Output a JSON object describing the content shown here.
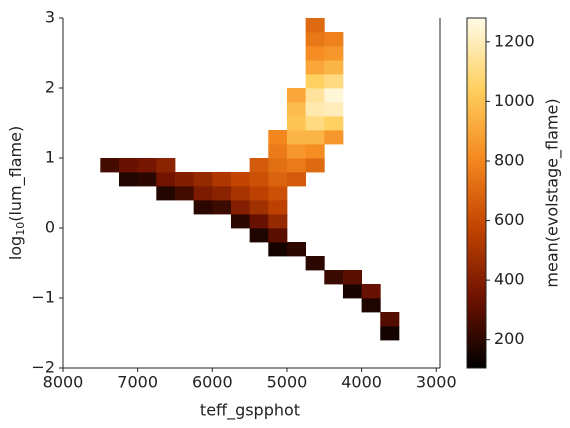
{
  "chart_data": {
    "type": "heatmap2d",
    "xlabel": "teff_gspphot",
    "ylabel": [
      "log",
      "10",
      "(lum_flame)"
    ],
    "xlim": [
      8000,
      2950
    ],
    "ylim": [
      -2,
      3
    ],
    "xticks": [
      8000,
      7000,
      6000,
      5000,
      4000,
      3000
    ],
    "yticks": [
      {
        "value": -2,
        "label": "−2"
      },
      {
        "value": -1,
        "label": "−1"
      },
      0,
      1,
      2,
      3
    ],
    "x_bins": [
      7500,
      7250,
      7000,
      6750,
      6500,
      6250,
      6000,
      5750,
      5500,
      5250,
      5000,
      4750,
      4500,
      4250,
      4000,
      3750,
      3500
    ],
    "y_bins": [
      -1.6,
      -1.4,
      -1.2,
      -1.0,
      -0.8,
      -0.6,
      -0.4,
      -0.2,
      0.0,
      0.2,
      0.4,
      0.6,
      0.8,
      1.0,
      1.2,
      1.4,
      1.6,
      1.8,
      2.0,
      2.2,
      2.4,
      2.6,
      2.8,
      3.0
    ],
    "values": [
      [
        null,
        null,
        null,
        null,
        null,
        null,
        null,
        null,
        null,
        null,
        null,
        null,
        null,
        null,
        null,
        150
      ],
      [
        null,
        null,
        null,
        null,
        null,
        null,
        null,
        null,
        null,
        null,
        null,
        null,
        null,
        null,
        null,
        280
      ],
      [
        null,
        null,
        null,
        null,
        null,
        null,
        null,
        null,
        null,
        null,
        null,
        null,
        null,
        null,
        170,
        null
      ],
      [
        null,
        null,
        null,
        null,
        null,
        null,
        null,
        null,
        null,
        null,
        null,
        null,
        null,
        160,
        330,
        null
      ],
      [
        null,
        null,
        null,
        null,
        null,
        null,
        null,
        null,
        null,
        null,
        null,
        null,
        230,
        300,
        null,
        null
      ],
      [
        null,
        null,
        null,
        null,
        null,
        null,
        null,
        null,
        null,
        null,
        null,
        200,
        null,
        null,
        null,
        null
      ],
      [
        null,
        null,
        null,
        null,
        null,
        null,
        null,
        null,
        null,
        150,
        200,
        null,
        null,
        null,
        null,
        null
      ],
      [
        null,
        null,
        null,
        null,
        null,
        null,
        null,
        null,
        170,
        300,
        null,
        null,
        null,
        null,
        null,
        null
      ],
      [
        null,
        null,
        null,
        null,
        null,
        null,
        null,
        200,
        330,
        450,
        null,
        null,
        null,
        null,
        null,
        null
      ],
      [
        null,
        null,
        null,
        null,
        null,
        200,
        230,
        400,
        480,
        560,
        null,
        null,
        null,
        null,
        null,
        null
      ],
      [
        null,
        null,
        null,
        180,
        250,
        380,
        420,
        500,
        560,
        620,
        null,
        null,
        null,
        null,
        null,
        null
      ],
      [
        null,
        180,
        200,
        350,
        400,
        450,
        520,
        580,
        620,
        680,
        650,
        null,
        null,
        null,
        null,
        null
      ],
      [
        250,
        330,
        360,
        420,
        null,
        null,
        null,
        null,
        650,
        720,
        760,
        700,
        null,
        null,
        null,
        null
      ],
      [
        null,
        null,
        null,
        null,
        null,
        null,
        null,
        null,
        null,
        760,
        850,
        820,
        null,
        null,
        null,
        null
      ],
      [
        null,
        null,
        null,
        null,
        null,
        null,
        null,
        null,
        null,
        800,
        950,
        950,
        850,
        null,
        null,
        null
      ],
      [
        null,
        null,
        null,
        null,
        null,
        null,
        null,
        null,
        null,
        null,
        1000,
        1100,
        1050,
        null,
        null,
        null
      ],
      [
        null,
        null,
        null,
        null,
        null,
        null,
        null,
        null,
        null,
        null,
        980,
        1180,
        1200,
        null,
        null,
        null
      ],
      [
        null,
        null,
        null,
        null,
        null,
        null,
        null,
        null,
        null,
        null,
        900,
        1150,
        1250,
        null,
        null,
        null
      ],
      [
        null,
        null,
        null,
        null,
        null,
        null,
        null,
        null,
        null,
        null,
        null,
        1050,
        1100,
        null,
        null,
        null
      ],
      [
        null,
        null,
        null,
        null,
        null,
        null,
        null,
        null,
        null,
        null,
        null,
        900,
        950,
        null,
        null,
        null
      ],
      [
        null,
        null,
        null,
        null,
        null,
        null,
        null,
        null,
        null,
        null,
        null,
        820,
        850,
        null,
        null,
        null
      ],
      [
        null,
        null,
        null,
        null,
        null,
        null,
        null,
        null,
        null,
        null,
        null,
        750,
        780,
        null,
        null,
        null
      ],
      [
        null,
        null,
        null,
        null,
        null,
        null,
        null,
        null,
        null,
        null,
        null,
        700,
        null,
        null,
        null,
        null
      ]
    ],
    "colormap": [
      "#000000",
      "#6e1200",
      "#c24400",
      "#f58a1f",
      "#ffd060",
      "#fffbe8"
    ],
    "colorbar": {
      "label": "mean(evolstage_flame)",
      "clim": [
        105,
        1280
      ],
      "ticks": [
        200,
        400,
        600,
        800,
        1000,
        1200
      ]
    }
  }
}
